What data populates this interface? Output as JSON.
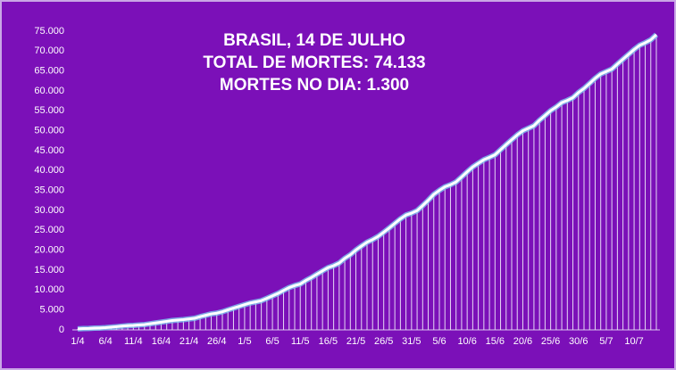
{
  "chart_data": {
    "type": "line",
    "title": "BRASIL,  14 DE JULHO",
    "subtitle": [
      "TOTAL DE MORTES: 74.133",
      "MORTES NO DIA: 1.300"
    ],
    "categories": [
      "1/4",
      null,
      null,
      null,
      null,
      "6/4",
      null,
      null,
      null,
      null,
      "11/4",
      null,
      null,
      null,
      null,
      "16/4",
      null,
      null,
      null,
      null,
      "21/4",
      null,
      null,
      null,
      null,
      "26/4",
      null,
      null,
      null,
      null,
      "1/5",
      null,
      null,
      null,
      null,
      "6/5",
      null,
      null,
      null,
      null,
      "11/5",
      null,
      null,
      null,
      null,
      "16/5",
      null,
      null,
      null,
      null,
      "21/5",
      null,
      null,
      null,
      null,
      "26/5",
      null,
      null,
      null,
      null,
      "31/5",
      null,
      null,
      null,
      null,
      "5/6",
      null,
      null,
      null,
      null,
      "10/6",
      null,
      null,
      null,
      null,
      "15/6",
      null,
      null,
      null,
      null,
      "20/6",
      null,
      null,
      null,
      null,
      "25/6",
      null,
      null,
      null,
      null,
      "30/6",
      null,
      null,
      null,
      null,
      "5/7",
      null,
      null,
      null,
      null,
      "10/7",
      null,
      null,
      null,
      null
    ],
    "values": [
      241,
      324,
      359,
      445,
      486,
      553,
      667,
      800,
      941,
      1056,
      1124,
      1223,
      1328,
      1532,
      1736,
      1924,
      2141,
      2354,
      2462,
      2575,
      2741,
      2906,
      3313,
      3670,
      4016,
      4205,
      4543,
      5017,
      5466,
      5901,
      6329,
      6750,
      7025,
      7321,
      7921,
      8536,
      9146,
      9897,
      10627,
      11123,
      11519,
      12400,
      13149,
      13993,
      14817,
      15633,
      16118,
      16792,
      17971,
      18859,
      20047,
      21048,
      22013,
      22666,
      23473,
      24512,
      25598,
      26754,
      27878,
      28834,
      29314,
      29937,
      31199,
      32548,
      34021,
      35026,
      35930,
      36455,
      37134,
      38406,
      39680,
      40919,
      41828,
      42720,
      43332,
      43959,
      45241,
      46510,
      47748,
      48954,
      49976,
      50617,
      51271,
      52645,
      53830,
      55054,
      55961,
      57070,
      57622,
      58314,
      59594,
      60632,
      61884,
      63174,
      64265,
      64867,
      65487,
      66741,
      67964,
      69184,
      70398,
      71469,
      72100,
      72833,
      74133
    ],
    "color": "#ffffff",
    "ylim": [
      0,
      75000
    ],
    "yticks": [
      0,
      {
        "value": 5000,
        "label": "5.000"
      },
      {
        "value": 10000,
        "label": "10.000"
      },
      {
        "value": 15000,
        "label": "15.000"
      },
      {
        "value": 20000,
        "label": "20.000"
      },
      {
        "value": 25000,
        "label": "25.000"
      },
      {
        "value": 30000,
        "label": "30.000"
      },
      {
        "value": 35000,
        "label": "35.000"
      },
      {
        "value": 40000,
        "label": "40.000"
      },
      {
        "value": 45000,
        "label": "45.000"
      },
      {
        "value": 50000,
        "label": "50.000"
      },
      {
        "value": 55000,
        "label": "55.000"
      },
      {
        "value": 60000,
        "label": "60.000"
      },
      {
        "value": 65000,
        "label": "65.000"
      },
      {
        "value": 70000,
        "label": "70.000"
      },
      {
        "value": 75000,
        "label": "75.000"
      }
    ],
    "grid": false
  }
}
